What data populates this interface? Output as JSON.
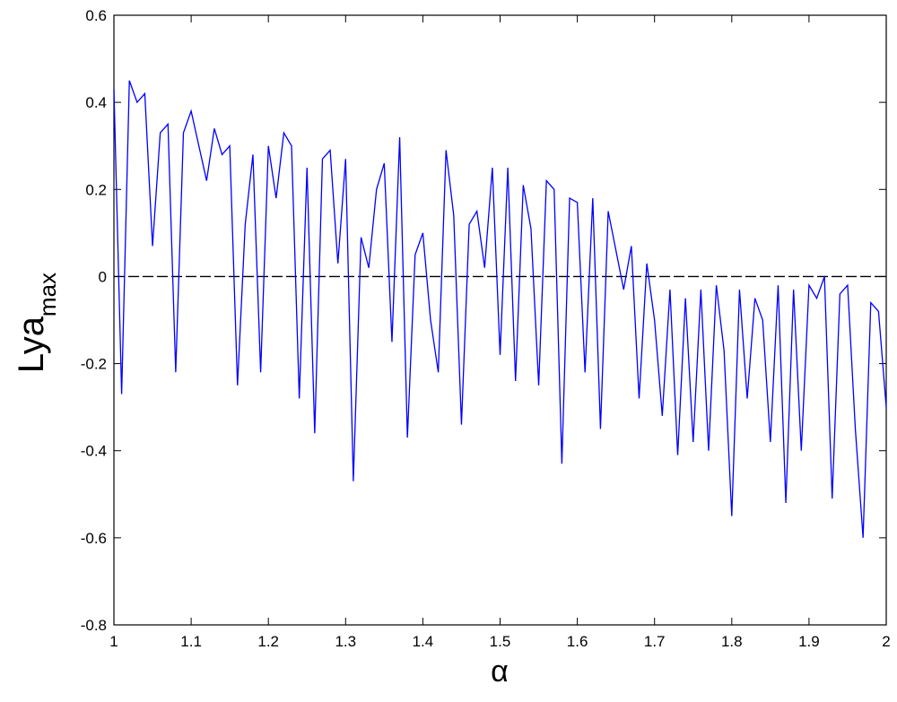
{
  "chart_data": {
    "type": "line",
    "x_label": "α",
    "y_label": "Lya",
    "y_label_sub": "max",
    "x": [
      1.0,
      1.01,
      1.02,
      1.03,
      1.04,
      1.05,
      1.06,
      1.07,
      1.08,
      1.09,
      1.1,
      1.11,
      1.12,
      1.13,
      1.14,
      1.15,
      1.16,
      1.17,
      1.18,
      1.19,
      1.2,
      1.21,
      1.22,
      1.23,
      1.24,
      1.25,
      1.26,
      1.27,
      1.28,
      1.29,
      1.3,
      1.31,
      1.32,
      1.33,
      1.34,
      1.35,
      1.36,
      1.37,
      1.38,
      1.39,
      1.4,
      1.41,
      1.42,
      1.43,
      1.44,
      1.45,
      1.46,
      1.47,
      1.48,
      1.49,
      1.5,
      1.51,
      1.52,
      1.53,
      1.54,
      1.55,
      1.56,
      1.57,
      1.58,
      1.59,
      1.6,
      1.61,
      1.62,
      1.63,
      1.64,
      1.65,
      1.66,
      1.67,
      1.68,
      1.69,
      1.7,
      1.71,
      1.72,
      1.73,
      1.74,
      1.75,
      1.76,
      1.77,
      1.78,
      1.79,
      1.8,
      1.81,
      1.82,
      1.83,
      1.84,
      1.85,
      1.86,
      1.87,
      1.88,
      1.89,
      1.9,
      1.91,
      1.92,
      1.93,
      1.94,
      1.95,
      1.96,
      1.97,
      1.98,
      1.99,
      2.0
    ],
    "series": [
      {
        "color": "#0000ff",
        "values": [
          0.43,
          -0.27,
          0.45,
          0.4,
          0.42,
          0.07,
          0.33,
          0.35,
          -0.22,
          0.33,
          0.38,
          0.3,
          0.22,
          0.34,
          0.28,
          0.3,
          -0.25,
          0.12,
          0.28,
          -0.22,
          0.3,
          0.18,
          0.33,
          0.3,
          -0.28,
          0.25,
          -0.36,
          0.27,
          0.29,
          0.03,
          0.27,
          -0.47,
          0.09,
          0.02,
          0.2,
          0.26,
          -0.15,
          0.32,
          -0.37,
          0.05,
          0.1,
          -0.1,
          -0.22,
          0.29,
          0.14,
          -0.34,
          0.12,
          0.15,
          0.02,
          0.25,
          -0.18,
          0.25,
          -0.24,
          0.21,
          0.11,
          -0.25,
          0.22,
          0.2,
          -0.43,
          0.18,
          0.17,
          -0.22,
          0.18,
          -0.35,
          0.15,
          0.06,
          -0.03,
          0.07,
          -0.28,
          0.03,
          -0.1,
          -0.32,
          -0.03,
          -0.41,
          -0.05,
          -0.38,
          -0.03,
          -0.4,
          -0.02,
          -0.17,
          -0.55,
          -0.03,
          -0.28,
          -0.05,
          -0.1,
          -0.38,
          -0.02,
          -0.52,
          -0.03,
          -0.4,
          -0.02,
          -0.05,
          0.0,
          -0.51,
          -0.04,
          -0.02,
          -0.35,
          -0.6,
          -0.06,
          -0.08,
          -0.3
        ]
      }
    ],
    "reference_line": 0,
    "reference_color": "#000000",
    "xlim": [
      1,
      2
    ],
    "xticks": [
      1,
      1.1,
      1.2,
      1.3,
      1.4,
      1.5,
      1.6,
      1.7,
      1.8,
      1.9,
      2
    ],
    "ylim": [
      -0.8,
      0.6
    ],
    "yticks": [
      -0.8,
      -0.6,
      -0.4,
      -0.2,
      0,
      0.2,
      0.4,
      0.6
    ]
  }
}
